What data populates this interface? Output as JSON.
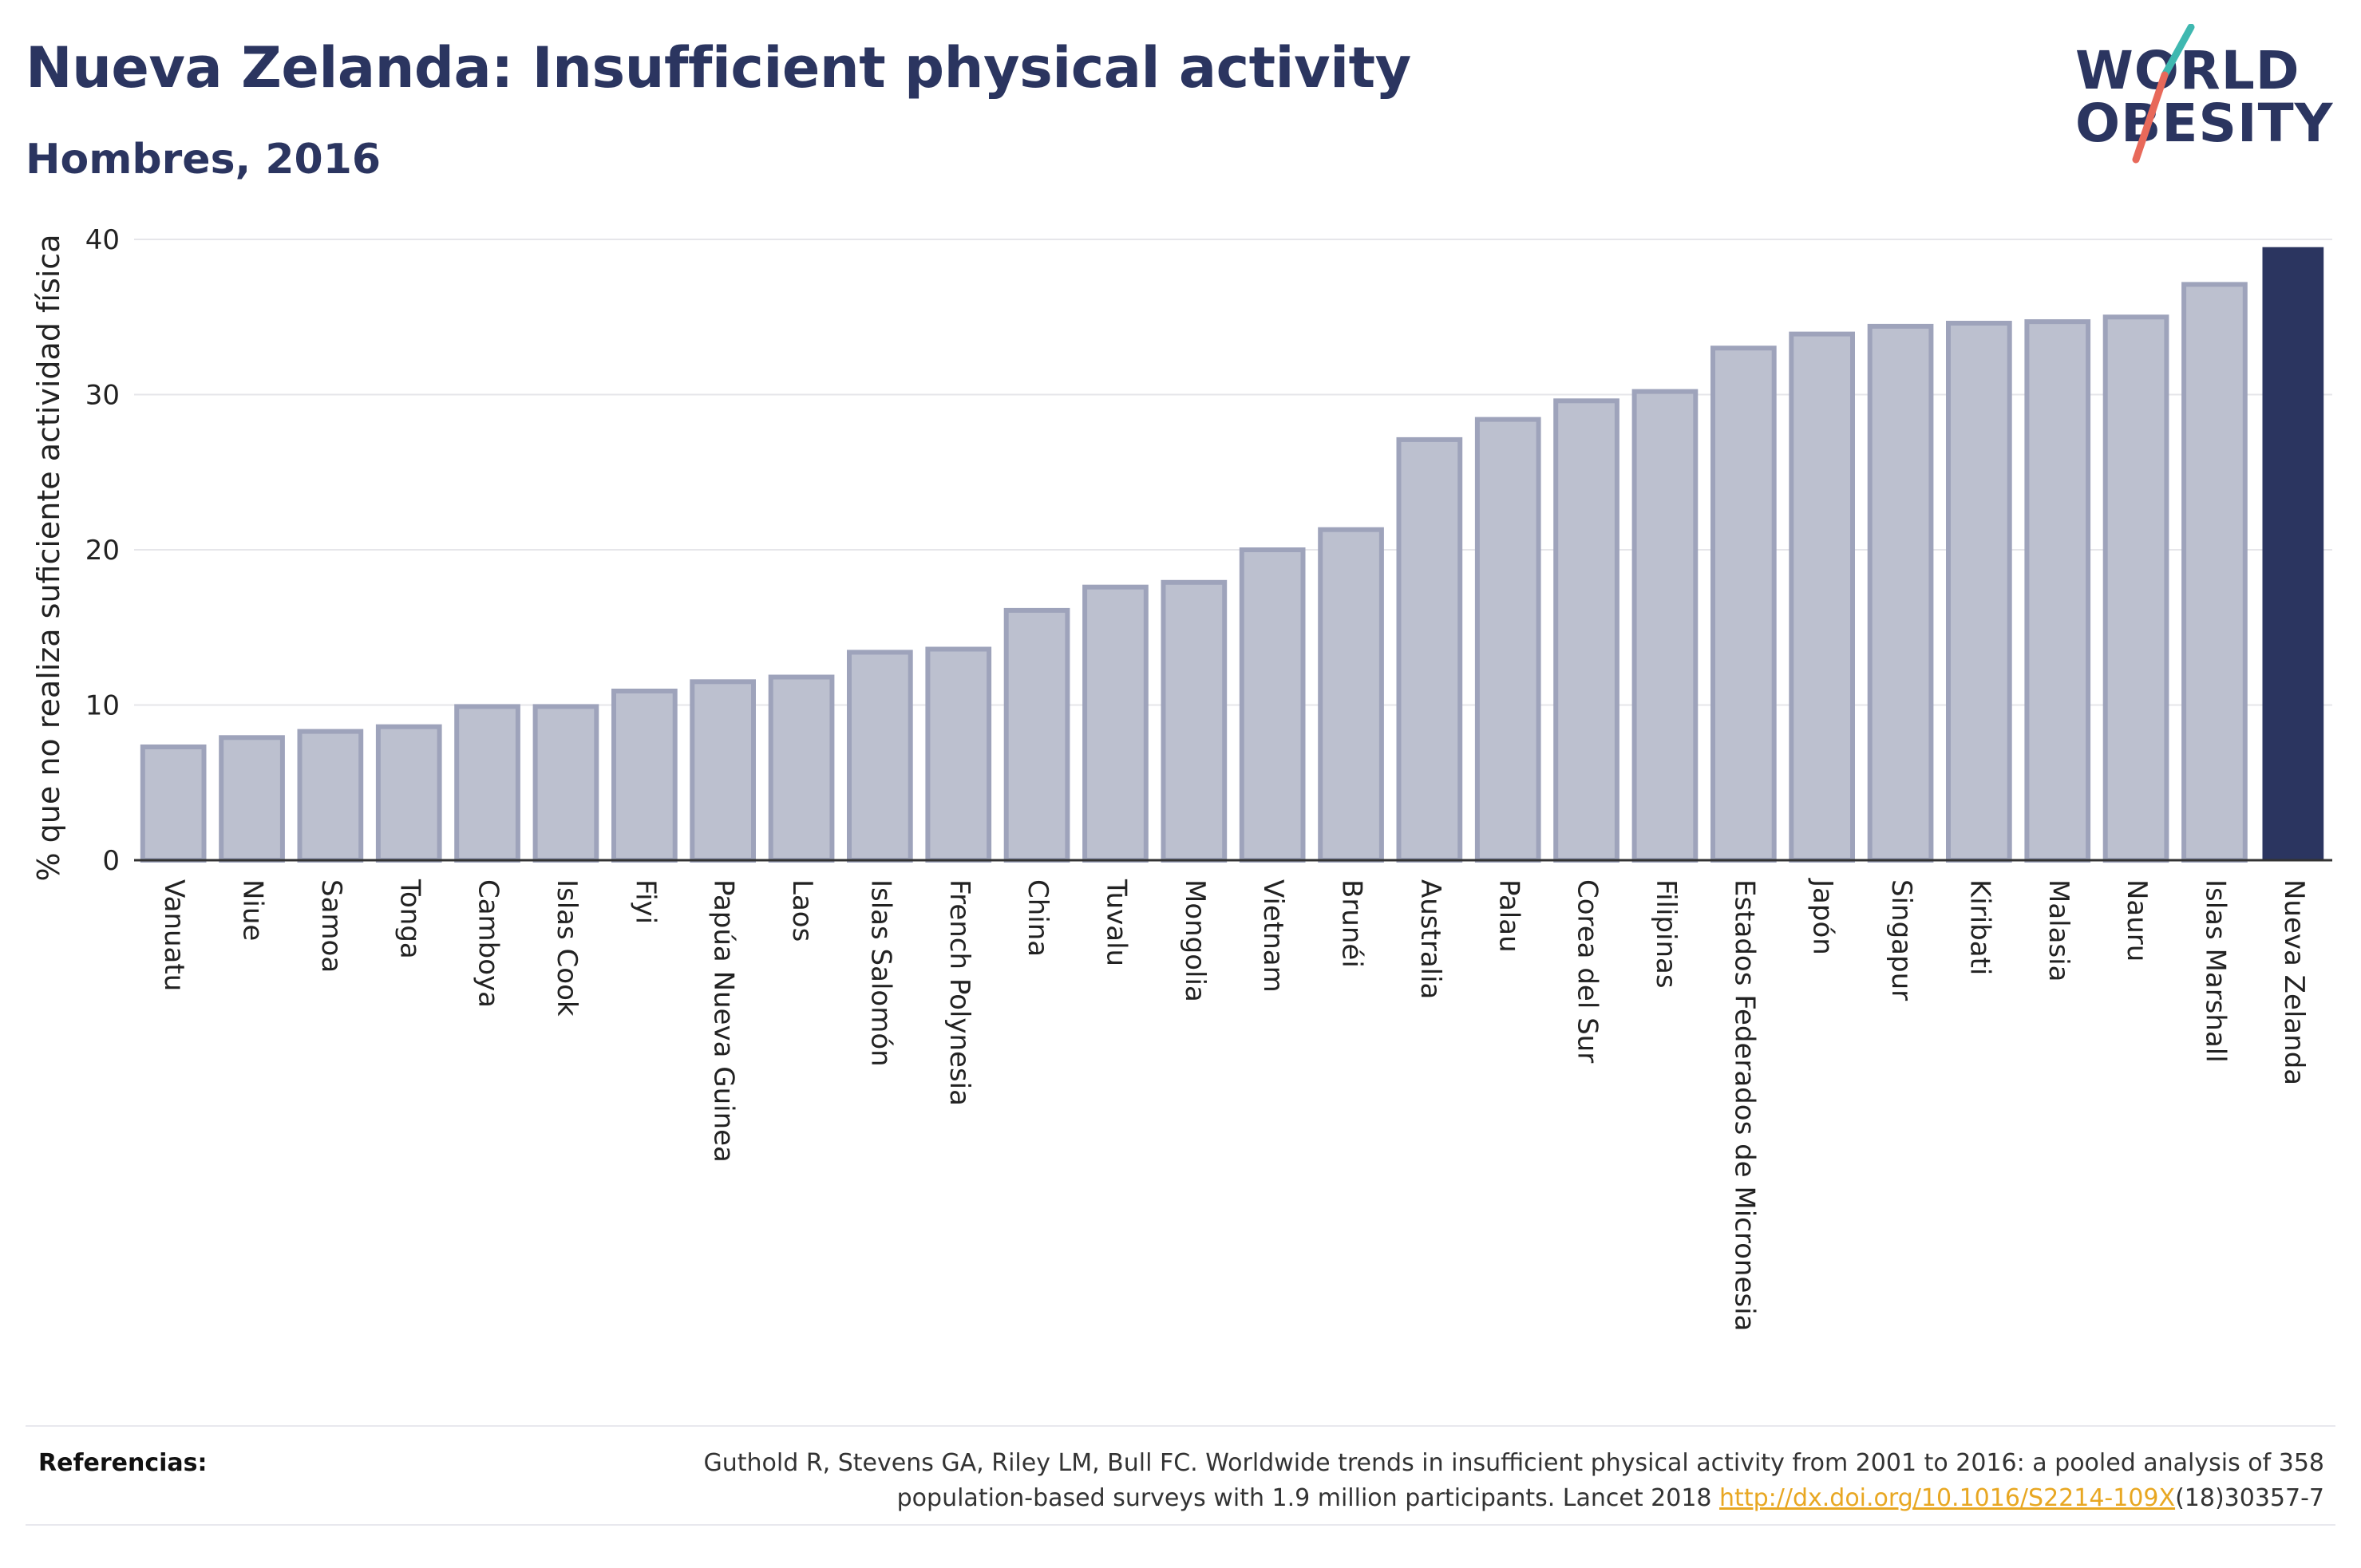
{
  "header": {
    "title": "Nueva Zelanda: Insufficient physical activity",
    "subtitle": "Hombres, 2016"
  },
  "logo": {
    "line1": "WORLD",
    "line2": "OBESITY",
    "colors": {
      "text": "#2b3560",
      "slash_top": "#3fb8b0",
      "slash_bottom": "#e8695a"
    }
  },
  "chart_data": {
    "type": "bar",
    "ylabel": "% que no realiza suficiente actividad física",
    "ylim": [
      0,
      40
    ],
    "yticks": [
      0,
      10,
      20,
      30,
      40
    ],
    "grid": true,
    "categories": [
      "Vanuatu",
      "Niue",
      "Samoa",
      "Tonga",
      "Camboya",
      "Islas Cook",
      "Fiyi",
      "Papúa Nueva Guinea",
      "Laos",
      "Islas Salomón",
      "French Polynesia",
      "China",
      "Tuvalu",
      "Mongolia",
      "Vietnam",
      "Brunéi",
      "Australia",
      "Palau",
      "Corea del Sur",
      "Filipinas",
      "Estados Federados de Micronesia",
      "Japón",
      "Singapur",
      "Kiribati",
      "Malasia",
      "Nauru",
      "Islas Marshall",
      "Nueva Zelanda"
    ],
    "values": [
      7.3,
      7.9,
      8.3,
      8.6,
      9.9,
      9.9,
      10.9,
      11.5,
      11.8,
      13.4,
      13.6,
      16.1,
      17.6,
      17.9,
      20.0,
      21.3,
      27.1,
      28.4,
      29.6,
      30.2,
      33.0,
      33.9,
      34.4,
      34.6,
      34.7,
      35.0,
      37.1,
      39.5
    ],
    "highlight": "Nueva Zelanda",
    "colors": {
      "bar": "#bcc0cf",
      "bar_edge": "#9ea3bb",
      "highlight": "#2b3560"
    }
  },
  "references": {
    "label": "Referencias:",
    "text_before": "Guthold R, Stevens GA, Riley LM, Bull FC. Worldwide trends in insufficient physical activity from 2001 to 2016: a pooled analysis of 358 population-based surveys with 1.9 million participants. Lancet 2018 ",
    "link": "http://dx.doi.org/10.1016/S2214-109X",
    "text_after": "(18)30357-7"
  }
}
